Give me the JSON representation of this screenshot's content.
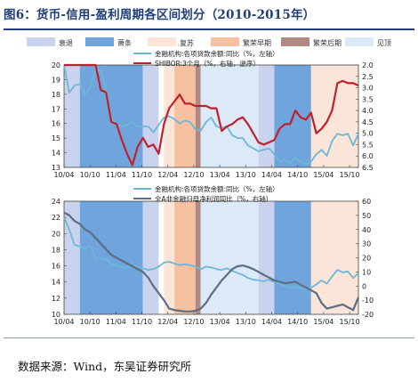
{
  "figure": {
    "title": "图6：货币-信用-盈利周期各区间划分（2010-2015年）",
    "source": "数据来源：Wind，东吴证券研究所"
  },
  "colors": {
    "phase1": "#c9d3ee",
    "phase2": "#6fa5dc",
    "phase3": "#fbe4d8",
    "phase4": "#f7c1a1",
    "phase5": "#b08a82",
    "phase6": "#dce9f6",
    "loan": "#6fb7d6",
    "shibor": "#c0202d",
    "profit": "#5d6e83"
  },
  "legend_phases": [
    {
      "label": "衰退",
      "color_key": "phase1"
    },
    {
      "label": "萧条",
      "color_key": "phase2"
    },
    {
      "label": "复苏",
      "color_key": "phase3"
    },
    {
      "label": "繁荣早期",
      "color_key": "phase4"
    },
    {
      "label": "繁荣后期",
      "color_key": "phase5"
    },
    {
      "label": "见顶",
      "color_key": "phase6"
    }
  ],
  "phases": [
    {
      "type": "phase1",
      "start": 0,
      "end": 3
    },
    {
      "type": "phase2",
      "start": 3,
      "end": 15
    },
    {
      "type": "phase1",
      "start": 15,
      "end": 18
    },
    {
      "type": "phase3",
      "start": 19,
      "end": 21
    },
    {
      "type": "phase4",
      "start": 21,
      "end": 25
    },
    {
      "type": "phase5",
      "start": 25,
      "end": 26
    },
    {
      "type": "phase6",
      "start": 26,
      "end": 37
    },
    {
      "type": "phase1",
      "start": 37,
      "end": 40
    },
    {
      "type": "phase2",
      "start": 40,
      "end": 47
    },
    {
      "type": "phase3",
      "start": 47,
      "end": 57
    }
  ],
  "chart_data": [
    {
      "type": "line",
      "x_ticks": [
        "10/04",
        "10/10",
        "11/04",
        "11/10",
        "12/04",
        "12/10",
        "13/04",
        "13/10",
        "14/04",
        "14/10",
        "15/04",
        "15/10"
      ],
      "left_axis": {
        "range": [
          13,
          20
        ],
        "ticks": [
          13,
          14,
          15,
          16,
          17,
          18,
          19,
          20
        ]
      },
      "right_axis": {
        "range": [
          6.5,
          2.0
        ],
        "inverted": true,
        "ticks": [
          "2.0",
          "2.5",
          "3.0",
          "3.5",
          "4.0",
          "4.5",
          "5.0",
          "5.5",
          "6.0",
          "6.5"
        ]
      },
      "series": [
        {
          "name": "金融机构:各项贷款余额:同比（%，左轴）",
          "axis": "left",
          "color_key": "loan",
          "values": [
            20.0,
            18.1,
            18.6,
            18.7,
            18.0,
            18.5,
            19.7,
            19.6,
            18.4,
            16.4,
            15.9,
            15.8,
            15.9,
            16.1,
            15.8,
            15.8,
            15.8,
            15.4,
            15.9,
            16.4,
            16.5,
            16.3,
            16.0,
            16.2,
            16.1,
            15.6,
            15.5,
            16.1,
            16.4,
            15.8,
            15.7,
            15.8,
            15.2,
            15.0,
            15.0,
            14.5,
            14.3,
            14.1,
            14.2,
            14.3,
            13.9,
            13.4,
            13.5,
            13.3,
            13.7,
            13.4,
            13.2,
            13.4,
            13.9,
            14.2,
            13.8,
            14.8,
            15.3,
            15.2,
            15.3,
            14.5,
            15.3
          ]
        },
        {
          "name": "SHIBOR:3个月（%，右轴，逆序）",
          "axis": "right",
          "color_key": "shibor",
          "values": [
            2.0,
            2.0,
            2.0,
            2.0,
            2.0,
            2.0,
            2.0,
            3.1,
            3.2,
            4.5,
            4.6,
            5.3,
            5.9,
            6.4,
            5.6,
            5.2,
            5.6,
            5.5,
            5.9,
            4.6,
            3.9,
            3.6,
            3.3,
            3.7,
            3.7,
            3.8,
            3.8,
            3.8,
            3.9,
            3.9,
            4.9,
            4.7,
            4.6,
            4.4,
            4.3,
            4.6,
            5.0,
            5.4,
            5.5,
            5.4,
            5.3,
            4.8,
            4.6,
            4.6,
            4.0,
            4.3,
            4.4,
            4.1,
            5.0,
            4.8,
            4.5,
            4.0,
            2.8,
            2.7,
            2.8,
            2.8,
            2.9
          ]
        }
      ]
    },
    {
      "type": "line",
      "x_ticks": [
        "10/04",
        "10/10",
        "11/04",
        "11/10",
        "12/04",
        "12/10",
        "13/04",
        "13/10",
        "14/04",
        "14/10",
        "15/04",
        "15/10"
      ],
      "left_axis": {
        "range": [
          10,
          24
        ],
        "ticks": [
          10,
          12,
          14,
          16,
          18,
          20,
          22,
          24
        ]
      },
      "right_axis": {
        "range": [
          -20,
          60
        ],
        "ticks": [
          -20,
          -10,
          0,
          10,
          20,
          30,
          40,
          50,
          60
        ]
      },
      "series": [
        {
          "name": "金融机构:各项贷款余额:同比（%，左轴）",
          "axis": "left",
          "color_key": "loan",
          "values": [
            22.0,
            20.5,
            18.6,
            18.4,
            18.1,
            18.5,
            17.0,
            16.9,
            16.8,
            16.2,
            16.1,
            15.8,
            15.9,
            16.0,
            15.9,
            15.7,
            15.5,
            15.6,
            15.9,
            16.4,
            16.5,
            16.3,
            16.1,
            16.2,
            16.1,
            15.9,
            15.6,
            15.9,
            15.8,
            15.6,
            15.5,
            15.7,
            15.4,
            15.1,
            14.9,
            14.5,
            14.3,
            14.2,
            14.1,
            14.3,
            14.0,
            13.8,
            13.5,
            13.3,
            13.4,
            13.2,
            13.2,
            13.3,
            13.7,
            14.2,
            13.8,
            14.7,
            15.5,
            15.2,
            15.3,
            14.5,
            15.1
          ]
        },
        {
          "name": "全A非金融归母净利润同比（%，右轴）",
          "axis": "right",
          "color_key": "profit",
          "values": [
            52.0,
            50.0,
            46.0,
            44.0,
            40.0,
            38.0,
            34.0,
            30.0,
            26.0,
            22.0,
            20.0,
            18.0,
            16.0,
            14.0,
            12.0,
            10.0,
            6.0,
            0.0,
            -5.0,
            -10.0,
            -16.0,
            -17.0,
            -17.5,
            -18.0,
            -18.0,
            -17.5,
            -16.0,
            -12.0,
            -6.0,
            -1.0,
            4.0,
            8.0,
            12.0,
            14.0,
            14.5,
            13.5,
            12.0,
            10.0,
            8.0,
            6.0,
            4.0,
            3.0,
            2.0,
            2.5,
            3.0,
            1.0,
            -1.0,
            -3.0,
            -5.0,
            -12.0,
            -16.0,
            -15.0,
            -14.0,
            -13.0,
            -15.0,
            -17.0,
            -8.0
          ]
        }
      ]
    }
  ]
}
